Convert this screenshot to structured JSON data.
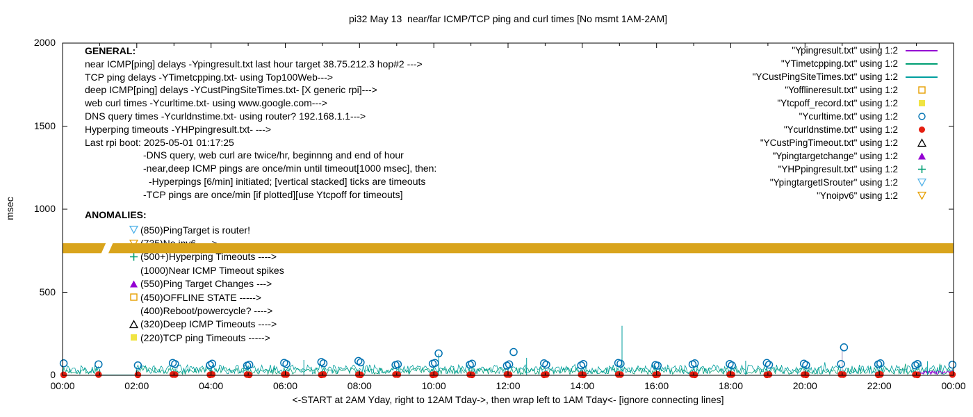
{
  "chart_data": {
    "type": "line+scatter",
    "title": "pi32 May 13  near/far ICMP/TCP ping and curl times [No msmt 1AM-2AM]",
    "xlabel": "<-START at 2AM Yday, right to 12AM Tday->, then wrap left to 1AM Tday<- [ignore connecting lines]",
    "ylabel": "msec",
    "xlim_hours": [
      0,
      24
    ],
    "ylim": [
      0,
      2000
    ],
    "xtick_labels": [
      "00:00",
      "02:00",
      "04:00",
      "06:00",
      "08:00",
      "10:00",
      "12:00",
      "14:00",
      "16:00",
      "18:00",
      "20:00",
      "22:00",
      "00:00"
    ],
    "ytick_values": [
      0,
      500,
      1000,
      1500,
      2000
    ],
    "grid": false,
    "legend_position": "top-right",
    "no_measurement_gap_hours": [
      1,
      2
    ],
    "offline_band": {
      "name": "Ynoipv6 / ipv6-fail band",
      "y_center": 765,
      "y_halfwidth": 30,
      "gap_x": [
        1.02,
        1.38
      ],
      "color": "#D9A41C"
    },
    "noise_series": [
      {
        "name": "YTimetcpping.txt",
        "color": "#009E73",
        "base": 5,
        "amp": 42,
        "spike_prob": 0.01,
        "spike_amp": 35,
        "seed": 7
      },
      {
        "name": "YCustPingSiteTimes.txt",
        "color": "#009E9E",
        "base": 8,
        "amp": 55,
        "spike_prob": 0.015,
        "spike_amp": 40,
        "seed": 13
      }
    ],
    "ping_lasthour": {
      "name": "Ypingresult.txt",
      "color": "#9400D3",
      "x": [
        23,
        24
      ],
      "base": 6,
      "amp": 22,
      "seed": 3
    },
    "spikes": [
      {
        "x": 6.5,
        "y": 92,
        "color": "#009E9E"
      },
      {
        "x": 10.13,
        "y": 128,
        "color": "#009E9E"
      },
      {
        "x": 12.5,
        "y": 105,
        "color": "#009E9E"
      },
      {
        "x": 15.07,
        "y": 298,
        "color": "#009E9E"
      },
      {
        "x": 18.4,
        "y": 88,
        "color": "#009E9E"
      },
      {
        "x": 21.0,
        "y": 158,
        "color": "#9A8FB8"
      },
      {
        "x": 23.3,
        "y": 85,
        "color": "#009E9E"
      }
    ],
    "curl_times": {
      "name": "Ycurltime.txt",
      "color": "#0072B2",
      "points": [
        [
          0.03,
          72
        ],
        [
          0.97,
          66
        ],
        [
          2.03,
          60
        ],
        [
          2.97,
          74
        ],
        [
          3.03,
          68
        ],
        [
          3.97,
          62
        ],
        [
          4.03,
          70
        ],
        [
          4.97,
          58
        ],
        [
          5.03,
          64
        ],
        [
          5.97,
          75
        ],
        [
          6.03,
          68
        ],
        [
          6.97,
          80
        ],
        [
          7.03,
          72
        ],
        [
          7.97,
          86
        ],
        [
          8.03,
          78
        ],
        [
          8.97,
          62
        ],
        [
          9.03,
          66
        ],
        [
          9.97,
          70
        ],
        [
          10.03,
          74
        ],
        [
          10.13,
          132
        ],
        [
          10.97,
          64
        ],
        [
          11.03,
          70
        ],
        [
          11.97,
          58
        ],
        [
          12.03,
          66
        ],
        [
          12.15,
          140
        ],
        [
          12.97,
          72
        ],
        [
          13.03,
          64
        ],
        [
          13.97,
          60
        ],
        [
          14.03,
          68
        ],
        [
          14.97,
          74
        ],
        [
          15.03,
          70
        ],
        [
          15.97,
          62
        ],
        [
          16.03,
          58
        ],
        [
          16.97,
          66
        ],
        [
          17.03,
          72
        ],
        [
          17.97,
          68
        ],
        [
          18.03,
          60
        ],
        [
          18.97,
          74
        ],
        [
          19.03,
          64
        ],
        [
          19.97,
          70
        ],
        [
          20.03,
          62
        ],
        [
          20.97,
          68
        ],
        [
          21.05,
          168
        ],
        [
          21.97,
          66
        ],
        [
          22.03,
          72
        ],
        [
          22.97,
          60
        ],
        [
          23.03,
          68
        ],
        [
          23.97,
          64
        ]
      ]
    },
    "dns_times": {
      "name": "Ycurldnstime.txt",
      "color": "#E51E10",
      "points": [
        [
          0.03,
          3
        ],
        [
          0.97,
          4
        ],
        [
          2.03,
          3
        ],
        [
          2.97,
          5
        ],
        [
          3.03,
          4
        ],
        [
          3.97,
          3
        ],
        [
          4.03,
          5
        ],
        [
          4.97,
          4
        ],
        [
          5.03,
          3
        ],
        [
          5.97,
          5
        ],
        [
          6.03,
          4
        ],
        [
          6.97,
          3
        ],
        [
          7.03,
          5
        ],
        [
          7.97,
          4
        ],
        [
          8.03,
          3
        ],
        [
          8.97,
          5
        ],
        [
          9.03,
          4
        ],
        [
          9.97,
          3
        ],
        [
          10.03,
          5
        ],
        [
          10.97,
          4
        ],
        [
          11.03,
          3
        ],
        [
          11.97,
          5
        ],
        [
          12.03,
          4
        ],
        [
          12.97,
          3
        ],
        [
          13.03,
          5
        ],
        [
          13.97,
          4
        ],
        [
          14.03,
          3
        ],
        [
          14.97,
          5
        ],
        [
          15.03,
          4
        ],
        [
          15.97,
          3
        ],
        [
          16.03,
          5
        ],
        [
          16.97,
          4
        ],
        [
          17.03,
          3
        ],
        [
          17.97,
          5
        ],
        [
          18.03,
          4
        ],
        [
          18.97,
          3
        ],
        [
          19.03,
          5
        ],
        [
          19.97,
          4
        ],
        [
          20.03,
          3
        ],
        [
          20.97,
          5
        ],
        [
          21.03,
          4
        ],
        [
          21.97,
          3
        ],
        [
          22.03,
          5
        ],
        [
          22.97,
          4
        ],
        [
          23.03,
          3
        ],
        [
          23.97,
          5
        ]
      ]
    }
  },
  "legend": {
    "items": [
      {
        "label": "\"Ypingresult.txt\" using 1:2",
        "sample": "line",
        "color": "#9400D3"
      },
      {
        "label": "\"YTimetcpping.txt\" using 1:2",
        "sample": "line",
        "color": "#009E73"
      },
      {
        "label": "\"YCustPingSiteTimes.txt\" using 1:2",
        "sample": "line",
        "color": "#009E9E"
      },
      {
        "label": "\"Yofflineresult.txt\" using 1:2",
        "sample": "sq-open",
        "color": "#E69F00"
      },
      {
        "label": "\"Ytcpoff_record.txt\" using 1:2",
        "sample": "sq-fill",
        "color": "#F0E442"
      },
      {
        "label": "\"Ycurltime.txt\" using 1:2",
        "sample": "circ-open",
        "color": "#0072B2"
      },
      {
        "label": "\"Ycurldnstime.txt\" using 1:2",
        "sample": "circ-fill",
        "color": "#E51E10"
      },
      {
        "label": "\"YCustPingTimeout.txt\" using 1:2",
        "sample": "tri-open",
        "color": "#000000"
      },
      {
        "label": "\"Ypingtargetchange\" using 1:2",
        "sample": "tri-fill",
        "color": "#9400D3"
      },
      {
        "label": "\"YHPpingresult.txt\" using 1:2",
        "sample": "plus",
        "color": "#009E73"
      },
      {
        "label": "\"YpingtargetISrouter\" using 1:2",
        "sample": "tridown-open",
        "color": "#56B4E9"
      },
      {
        "label": "\"Ynoipv6\" using 1:2",
        "sample": "tridown-open",
        "color": "#E69F00"
      }
    ]
  },
  "general": {
    "header": "GENERAL:",
    "lines": [
      {
        "indent": 0,
        "text": "near ICMP[ping] delays -Ypingresult.txt last hour target 38.75.212.3 hop#2 --->"
      },
      {
        "indent": 0,
        "text": "TCP ping delays -YTimetcpping.txt- using Top100Web--->"
      },
      {
        "indent": 0,
        "text": "deep ICMP[ping] delays -YCustPingSiteTimes.txt- [X generic rpi]--->"
      },
      {
        "indent": 0,
        "text": "web curl times -Ycurltime.txt- using www.google.com--->"
      },
      {
        "indent": 0,
        "text": "DNS query times -Ycurldnstime.txt- using router? 192.168.1.1--->"
      },
      {
        "indent": 0,
        "text": "Hyperping timeouts -YHPpingresult.txt- --->"
      },
      {
        "indent": 0,
        "text": "Last rpi boot: 2025-05-01 01:17:25"
      },
      {
        "indent": 1,
        "text": "-DNS query, web curl are twice/hr, beginnng and end of hour"
      },
      {
        "indent": 1,
        "text": "-near,deep ICMP pings are once/min until timeout[1000 msec], then:"
      },
      {
        "indent": 2,
        "text": "-Hyperpings [6/min] initiated; [vertical stacked] ticks are timeouts"
      },
      {
        "indent": 1,
        "text": "-TCP pings are once/min [if plotted][use Ytcpoff for timeouts]"
      }
    ]
  },
  "anomalies": {
    "header": "ANOMALIES:",
    "items": [
      {
        "marker": "tridown-open",
        "color": "#56B4E9",
        "text": "(850)PingTarget is router!"
      },
      {
        "marker": "tridown-open",
        "color": "#E69F00",
        "text": "(735)No ipv6 ---->"
      },
      {
        "marker": "plus",
        "color": "#009E73",
        "text": "(500+)Hyperping Timeouts ---->"
      },
      {
        "marker": "none",
        "color": "",
        "text": "(1000)Near ICMP Timeout spikes"
      },
      {
        "marker": "tri-fill",
        "color": "#9400D3",
        "text": "(550)Ping Target Changes --->"
      },
      {
        "marker": "sq-open",
        "color": "#E69F00",
        "text": "(450)OFFLINE STATE ----->"
      },
      {
        "marker": "none",
        "color": "",
        "text": "(400)Reboot/powercycle? ---->"
      },
      {
        "marker": "tri-open",
        "color": "#000000",
        "text": "(320)Deep ICMP Timeouts ---->"
      },
      {
        "marker": "sq-fill",
        "color": "#F0E442",
        "text": "(220)TCP ping Timeouts ----->"
      }
    ]
  }
}
